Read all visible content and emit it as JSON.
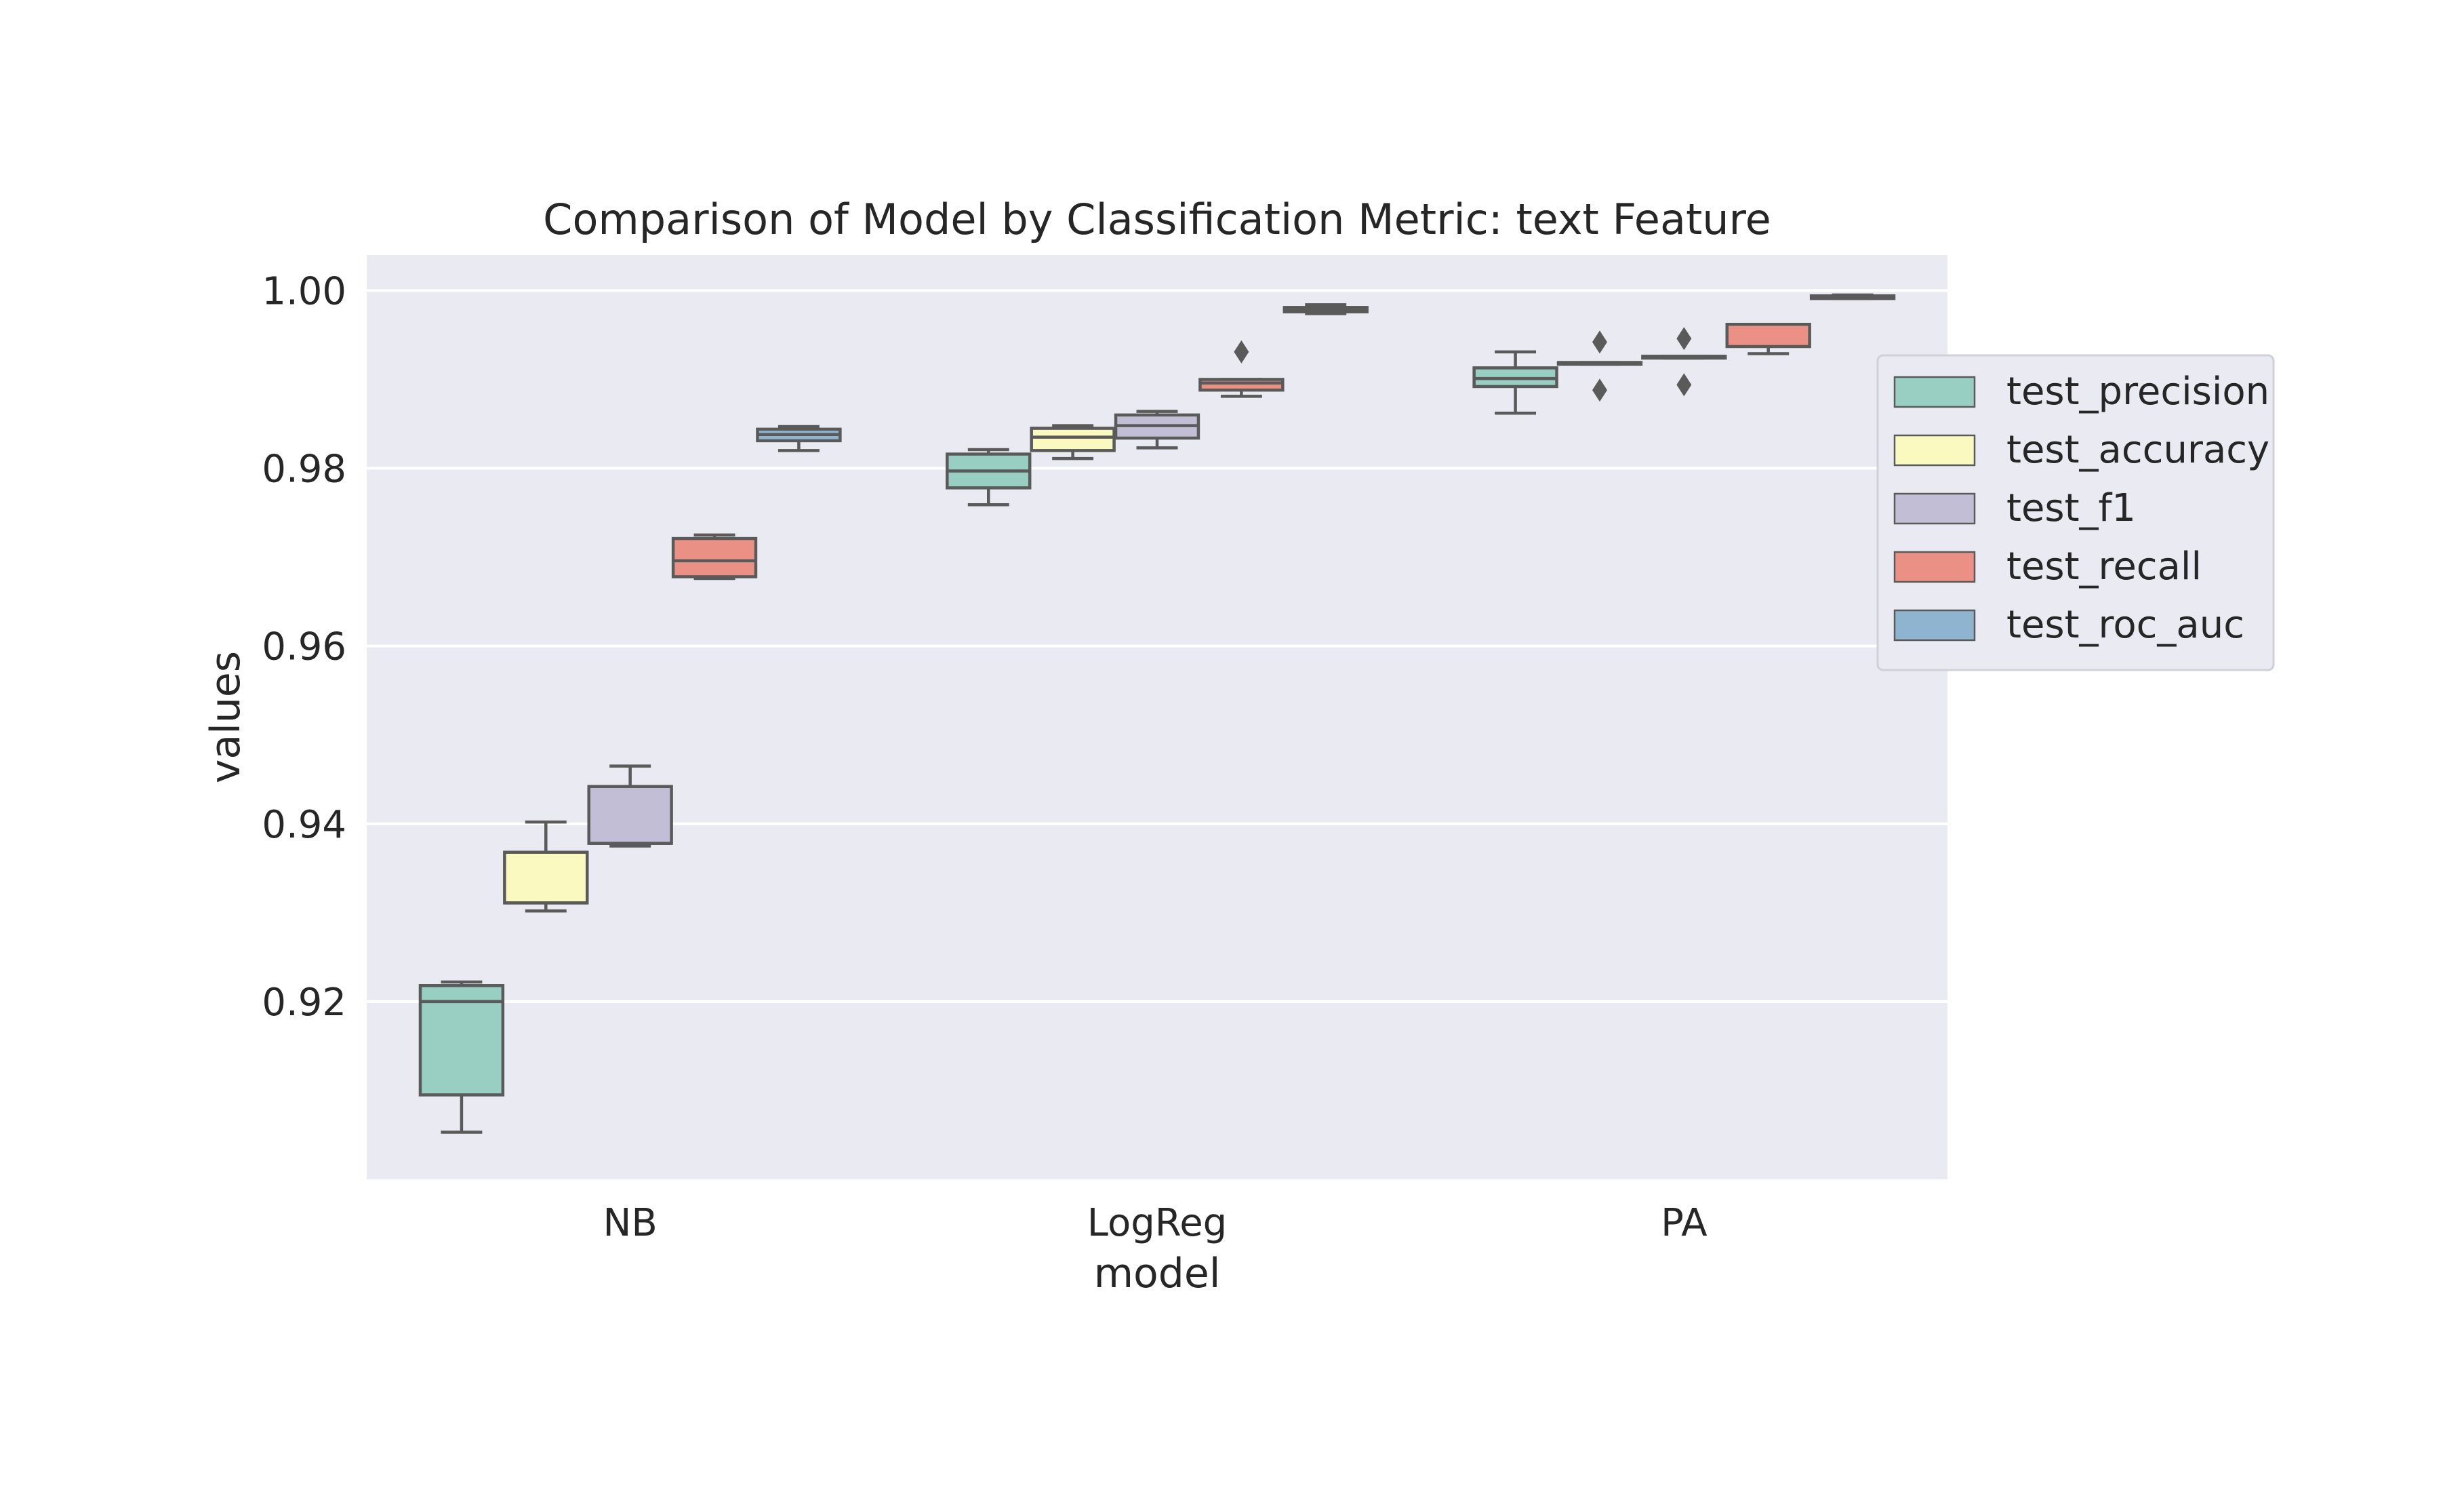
{
  "chart_data": {
    "type": "box",
    "title": "Comparison of Model by Classification Metric: text Feature",
    "xlabel": "model",
    "ylabel": "values",
    "ylim": [
      0.9,
      1.004
    ],
    "yticks": [
      0.92,
      0.94,
      0.96,
      0.98,
      1.0
    ],
    "ytick_labels": [
      "0.92",
      "0.94",
      "0.96",
      "0.98",
      "1.00"
    ],
    "grid": true,
    "background": "#eaeaf2",
    "legend_position": "right",
    "categories": [
      "NB",
      "LogReg",
      "PA"
    ],
    "series": [
      {
        "name": "test_precision",
        "color": "#99cec2",
        "boxes": [
          {
            "whislo": 0.9053,
            "q1": 0.9095,
            "med": 0.92,
            "q3": 0.9218,
            "whishi": 0.9222,
            "fliers": []
          },
          {
            "whislo": 0.9759,
            "q1": 0.9778,
            "med": 0.9797,
            "q3": 0.9816,
            "whishi": 0.9821,
            "fliers": []
          },
          {
            "whislo": 0.9862,
            "q1": 0.9892,
            "med": 0.9901,
            "q3": 0.9913,
            "whishi": 0.9931,
            "fliers": []
          }
        ]
      },
      {
        "name": "test_accuracy",
        "color": "#fafac0",
        "boxes": [
          {
            "whislo": 0.9302,
            "q1": 0.9311,
            "med": 0.9311,
            "q3": 0.9368,
            "whishi": 0.9402,
            "fliers": []
          },
          {
            "whislo": 0.9811,
            "q1": 0.982,
            "med": 0.9835,
            "q3": 0.9845,
            "whishi": 0.9848,
            "fliers": []
          },
          {
            "whislo": 0.9917,
            "q1": 0.9917,
            "med": 0.9919,
            "q3": 0.9919,
            "whishi": 0.9919,
            "fliers": [
              0.9942,
              0.9888
            ]
          }
        ]
      },
      {
        "name": "test_f1",
        "color": "#c1bed6",
        "boxes": [
          {
            "whislo": 0.9375,
            "q1": 0.9378,
            "med": 0.9378,
            "q3": 0.9442,
            "whishi": 0.9465,
            "fliers": []
          },
          {
            "whislo": 0.9823,
            "q1": 0.9834,
            "med": 0.9848,
            "q3": 0.986,
            "whishi": 0.9864,
            "fliers": []
          },
          {
            "whislo": 0.9924,
            "q1": 0.9924,
            "med": 0.9926,
            "q3": 0.9926,
            "whishi": 0.9926,
            "fliers": [
              0.9946,
              0.9894
            ]
          }
        ]
      },
      {
        "name": "test_recall",
        "color": "#ea9085",
        "boxes": [
          {
            "whislo": 0.9676,
            "q1": 0.9678,
            "med": 0.9696,
            "q3": 0.9721,
            "whishi": 0.9725,
            "fliers": []
          },
          {
            "whislo": 0.9881,
            "q1": 0.9888,
            "med": 0.9896,
            "q3": 0.99,
            "whishi": 0.99,
            "fliers": [
              0.9931
            ]
          },
          {
            "whislo": 0.9929,
            "q1": 0.9937,
            "med": 0.9962,
            "q3": 0.9962,
            "whishi": 0.9962,
            "fliers": []
          }
        ]
      },
      {
        "name": "test_roc_auc",
        "color": "#8fb4cf",
        "boxes": [
          {
            "whislo": 0.982,
            "q1": 0.9831,
            "med": 0.9838,
            "q3": 0.9844,
            "whishi": 0.9847,
            "fliers": []
          },
          {
            "whislo": 0.9974,
            "q1": 0.9976,
            "med": 0.9978,
            "q3": 0.9981,
            "whishi": 0.9984,
            "fliers": []
          },
          {
            "whislo": 0.9991,
            "q1": 0.9991,
            "med": 0.9993,
            "q3": 0.9994,
            "whishi": 0.9995,
            "fliers": []
          }
        ]
      }
    ]
  }
}
